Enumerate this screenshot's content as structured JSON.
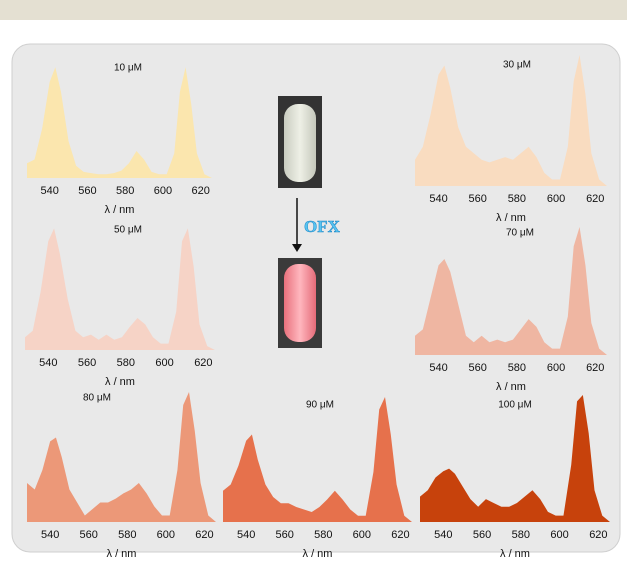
{
  "chart_data": [
    {
      "type": "area",
      "title": "10 μM",
      "x_label": "λ / nm",
      "color": "#fbe6ae",
      "xlim": [
        528,
        626
      ],
      "ylim": [
        0,
        100
      ],
      "xticks": [
        540,
        560,
        580,
        600,
        620
      ],
      "x": [
        528,
        532,
        536,
        540,
        543,
        546,
        550,
        554,
        558,
        562,
        566,
        570,
        574,
        578,
        582,
        586,
        590,
        594,
        598,
        602,
        606,
        609,
        612,
        615,
        618,
        622,
        626
      ],
      "values": [
        12,
        15,
        40,
        78,
        90,
        70,
        30,
        10,
        5,
        4,
        3,
        3,
        4,
        6,
        12,
        22,
        15,
        5,
        3,
        3,
        20,
        70,
        90,
        60,
        20,
        3,
        0
      ]
    },
    {
      "type": "area",
      "title": "30 μM",
      "x_label": "λ / nm",
      "color": "#f9dcc0",
      "xlim": [
        528,
        626
      ],
      "ylim": [
        0,
        100
      ],
      "xticks": [
        540,
        560,
        580,
        600,
        620
      ],
      "x": [
        528,
        532,
        536,
        540,
        543,
        546,
        550,
        554,
        558,
        562,
        566,
        570,
        574,
        578,
        582,
        586,
        590,
        594,
        598,
        602,
        606,
        609,
        612,
        615,
        618,
        622,
        626
      ],
      "values": [
        20,
        30,
        55,
        85,
        92,
        75,
        45,
        30,
        25,
        20,
        18,
        20,
        22,
        20,
        25,
        30,
        22,
        10,
        5,
        5,
        30,
        80,
        100,
        70,
        25,
        5,
        0
      ]
    },
    {
      "type": "area",
      "title": "50 μM",
      "x_label": "λ / nm",
      "color": "#f6d3c6",
      "xlim": [
        528,
        626
      ],
      "ylim": [
        0,
        100
      ],
      "xticks": [
        540,
        560,
        580,
        600,
        620
      ],
      "x": [
        528,
        532,
        536,
        540,
        543,
        546,
        550,
        554,
        558,
        562,
        566,
        570,
        574,
        578,
        582,
        586,
        590,
        594,
        598,
        602,
        606,
        609,
        612,
        615,
        618,
        622,
        626
      ],
      "values": [
        10,
        15,
        45,
        85,
        95,
        75,
        40,
        15,
        10,
        12,
        8,
        12,
        8,
        10,
        18,
        25,
        20,
        10,
        5,
        5,
        30,
        85,
        95,
        65,
        20,
        3,
        0
      ]
    },
    {
      "type": "area",
      "title": "70 μM",
      "x_label": "λ / nm",
      "color": "#efb6a2",
      "xlim": [
        528,
        626
      ],
      "ylim": [
        0,
        100
      ],
      "xticks": [
        540,
        560,
        580,
        600,
        620
      ],
      "x": [
        528,
        532,
        536,
        540,
        543,
        546,
        550,
        554,
        558,
        562,
        566,
        570,
        574,
        578,
        582,
        586,
        590,
        594,
        598,
        602,
        606,
        609,
        612,
        615,
        618,
        622,
        626
      ],
      "values": [
        15,
        20,
        45,
        70,
        75,
        65,
        40,
        15,
        10,
        15,
        10,
        12,
        10,
        12,
        20,
        28,
        22,
        10,
        5,
        5,
        30,
        85,
        100,
        70,
        25,
        5,
        0
      ]
    },
    {
      "type": "area",
      "title": "80 μM",
      "x_label": "λ / nm",
      "color": "#ec9878",
      "xlim": [
        528,
        626
      ],
      "ylim": [
        0,
        100
      ],
      "xticks": [
        540,
        560,
        580,
        600,
        620
      ],
      "x": [
        528,
        532,
        536,
        540,
        543,
        546,
        550,
        554,
        558,
        562,
        566,
        570,
        574,
        578,
        582,
        586,
        590,
        594,
        598,
        602,
        606,
        609,
        612,
        615,
        618,
        622,
        626
      ],
      "values": [
        30,
        25,
        40,
        62,
        65,
        50,
        25,
        15,
        5,
        10,
        15,
        15,
        18,
        22,
        25,
        30,
        22,
        12,
        5,
        5,
        40,
        90,
        100,
        70,
        30,
        5,
        0
      ]
    },
    {
      "type": "area",
      "title": "90 μM",
      "x_label": "λ / nm",
      "color": "#e6714c",
      "xlim": [
        528,
        626
      ],
      "ylim": [
        0,
        100
      ],
      "xticks": [
        540,
        560,
        580,
        600,
        620
      ],
      "x": [
        528,
        532,
        536,
        540,
        543,
        546,
        550,
        554,
        558,
        562,
        566,
        570,
        574,
        578,
        582,
        586,
        590,
        594,
        598,
        602,
        606,
        609,
        612,
        615,
        618,
        622,
        626
      ],
      "values": [
        25,
        30,
        45,
        65,
        70,
        50,
        30,
        20,
        15,
        15,
        12,
        10,
        8,
        12,
        18,
        25,
        18,
        10,
        5,
        5,
        40,
        90,
        100,
        70,
        30,
        5,
        0
      ]
    },
    {
      "type": "area",
      "title": "100 μM",
      "x_label": "λ / nm",
      "color": "#c7420c",
      "xlim": [
        528,
        626
      ],
      "ylim": [
        0,
        100
      ],
      "xticks": [
        540,
        560,
        580,
        600,
        620
      ],
      "x": [
        528,
        532,
        536,
        540,
        543,
        546,
        550,
        554,
        558,
        562,
        566,
        570,
        574,
        578,
        582,
        586,
        590,
        594,
        598,
        602,
        606,
        609,
        612,
        615,
        618,
        622,
        626
      ],
      "values": [
        20,
        25,
        35,
        40,
        42,
        38,
        28,
        18,
        12,
        18,
        15,
        12,
        12,
        15,
        20,
        25,
        18,
        8,
        5,
        5,
        45,
        95,
        100,
        70,
        25,
        5,
        0
      ]
    }
  ],
  "reagent_label": "OFX"
}
